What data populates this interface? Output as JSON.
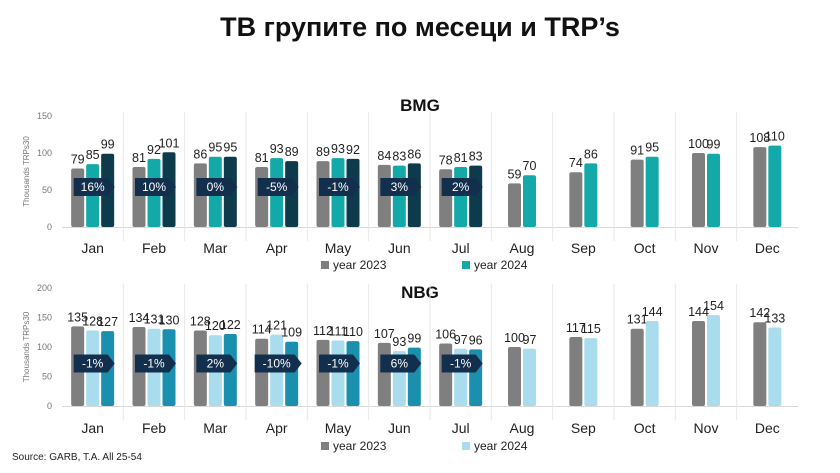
{
  "title": "ТВ групите по месеци и TRP’s",
  "source": "Source: GARB, T.A. All 25-54",
  "colors": {
    "y2023": "#7f7f7f",
    "bmg_y2024": "#14a9a9",
    "nbg_y2024": "#a9dced",
    "bmg_third": "#0d3b4c",
    "nbg_third": "#1a8fae",
    "badge": "#12304d"
  },
  "chart_data": [
    {
      "type": "bar",
      "title": "BMG",
      "ylabel": "Thousands TRPs30",
      "ylim": [
        0,
        150
      ],
      "yticks": [
        0,
        50,
        100,
        150
      ],
      "categories": [
        "Jan",
        "Feb",
        "Mar",
        "Apr",
        "May",
        "Jun",
        "Jul",
        "Aug",
        "Sep",
        "Oct",
        "Nov",
        "Dec"
      ],
      "series": [
        {
          "name": "year 2023",
          "values": [
            79,
            81,
            86,
            81,
            89,
            84,
            78,
            59,
            74,
            91,
            100,
            108
          ]
        },
        {
          "name": "year 2024",
          "values": [
            85,
            92,
            95,
            93,
            93,
            83,
            81,
            70,
            86,
            95,
            99,
            110
          ]
        },
        {
          "name": "",
          "values": [
            99,
            101,
            95,
            89,
            92,
            86,
            83,
            null,
            null,
            null,
            null,
            null
          ]
        }
      ],
      "change_labels": [
        "16%",
        "10%",
        "0%",
        "-5%",
        "-1%",
        "3%",
        "2%",
        null,
        null,
        null,
        null,
        null
      ],
      "legend": [
        "year 2023",
        "year 2024"
      ],
      "legend_position": "bottom"
    },
    {
      "type": "bar",
      "title": "NBG",
      "ylabel": "Thousands TRPs30",
      "ylim": [
        0,
        200
      ],
      "yticks": [
        0,
        50,
        100,
        150,
        200
      ],
      "categories": [
        "Jan",
        "Feb",
        "Mar",
        "Apr",
        "May",
        "Jun",
        "Jul",
        "Aug",
        "Sep",
        "Oct",
        "Nov",
        "Dec"
      ],
      "series": [
        {
          "name": "year 2023",
          "values": [
            135,
            134,
            128,
            114,
            112,
            107,
            106,
            100,
            117,
            131,
            144,
            142
          ]
        },
        {
          "name": "year 2024",
          "values": [
            128,
            131,
            120,
            121,
            111,
            93,
            97,
            97,
            115,
            144,
            154,
            133
          ]
        },
        {
          "name": "",
          "values": [
            127,
            130,
            122,
            109,
            110,
            99,
            96,
            null,
            null,
            null,
            null,
            null
          ]
        }
      ],
      "change_labels": [
        "-1%",
        "-1%",
        "2%",
        "-10%",
        "-1%",
        "6%",
        "-1%",
        null,
        null,
        null,
        null,
        null
      ],
      "legend": [
        "year 2023",
        "year 2024"
      ],
      "legend_position": "bottom"
    }
  ]
}
